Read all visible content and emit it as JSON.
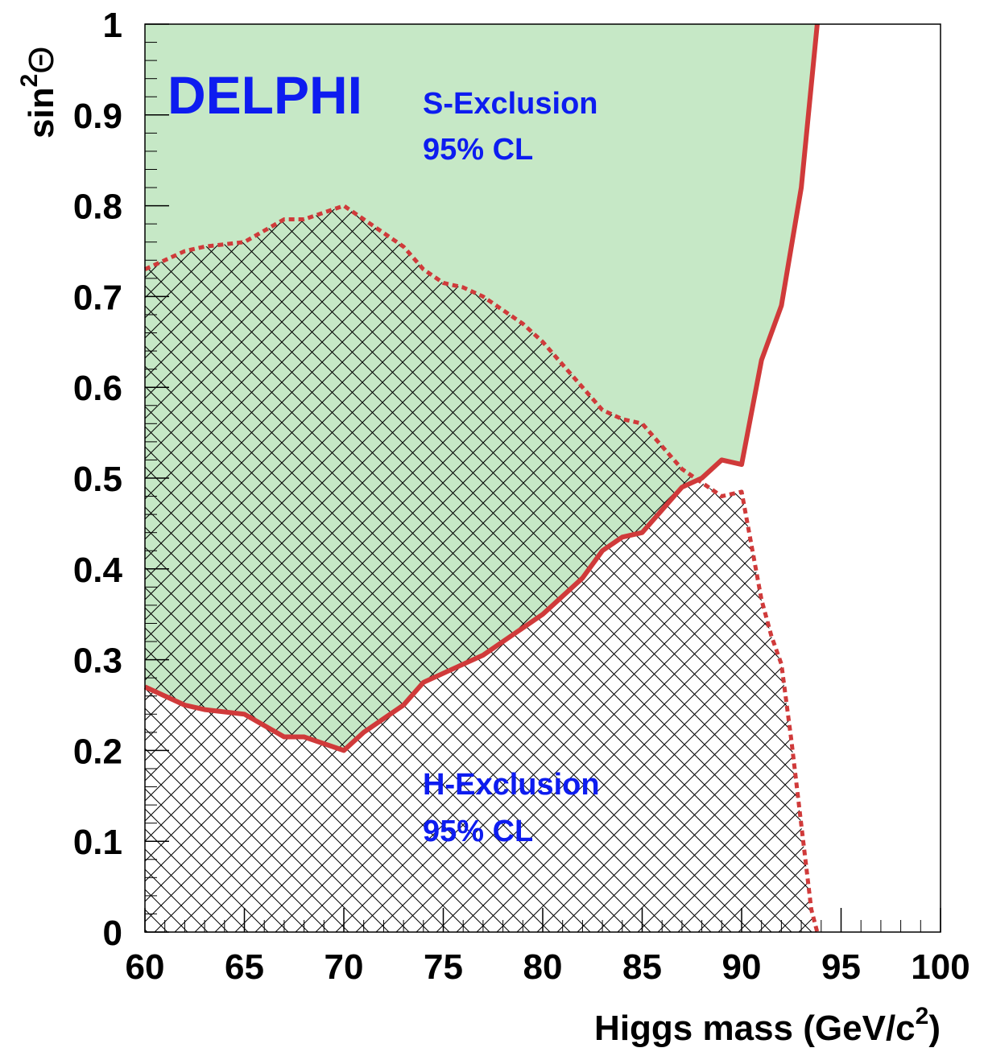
{
  "chart_data": {
    "type": "line",
    "xlabel": [
      "Higgs mass (GeV/c",
      "2",
      ")"
    ],
    "ylabel": [
      "sin",
      "2",
      "Θ"
    ],
    "xlim": [
      60,
      100
    ],
    "ylim": [
      0,
      1
    ],
    "xticks": [
      60,
      65,
      70,
      75,
      80,
      85,
      90,
      95,
      100
    ],
    "yticks": [
      0,
      0.1,
      0.2,
      0.3,
      0.4,
      0.5,
      0.6,
      0.7,
      0.8,
      0.9,
      1
    ],
    "series": [
      {
        "style": "solid",
        "color": "#d03a3a",
        "fill": "#c6e8c6",
        "x": [
          60,
          62,
          63,
          65,
          67,
          68,
          70,
          71,
          73,
          74,
          76,
          77,
          79,
          80,
          82,
          83,
          84,
          85,
          87,
          88,
          89,
          90,
          91,
          92,
          93,
          93.8
        ],
        "values": [
          0.27,
          0.25,
          0.245,
          0.24,
          0.215,
          0.215,
          0.2,
          0.22,
          0.25,
          0.275,
          0.295,
          0.305,
          0.335,
          0.35,
          0.39,
          0.42,
          0.435,
          0.44,
          0.49,
          0.5,
          0.52,
          0.515,
          0.63,
          0.69,
          0.82,
          1.0
        ]
      },
      {
        "style": "dotted",
        "color": "#d03a3a",
        "fill": "hatch",
        "x": [
          60,
          62,
          63,
          65,
          67,
          68,
          70,
          71,
          72,
          73,
          74,
          75,
          76,
          77,
          78,
          79,
          80,
          81,
          82,
          83,
          84,
          85,
          86,
          87,
          88,
          89,
          90,
          91,
          91.5,
          92,
          92.5,
          93,
          93.5,
          93.8
        ],
        "values": [
          0.73,
          0.75,
          0.755,
          0.76,
          0.785,
          0.785,
          0.8,
          0.785,
          0.77,
          0.755,
          0.73,
          0.715,
          0.71,
          0.7,
          0.685,
          0.67,
          0.65,
          0.625,
          0.6,
          0.575,
          0.565,
          0.56,
          0.535,
          0.51,
          0.495,
          0.48,
          0.485,
          0.366,
          0.326,
          0.295,
          0.211,
          0.118,
          0.025,
          0
        ]
      }
    ],
    "annotations": [
      "DELPHI",
      "S-Exclusion",
      "95% CL",
      "H-Exclusion",
      "95% CL"
    ]
  }
}
